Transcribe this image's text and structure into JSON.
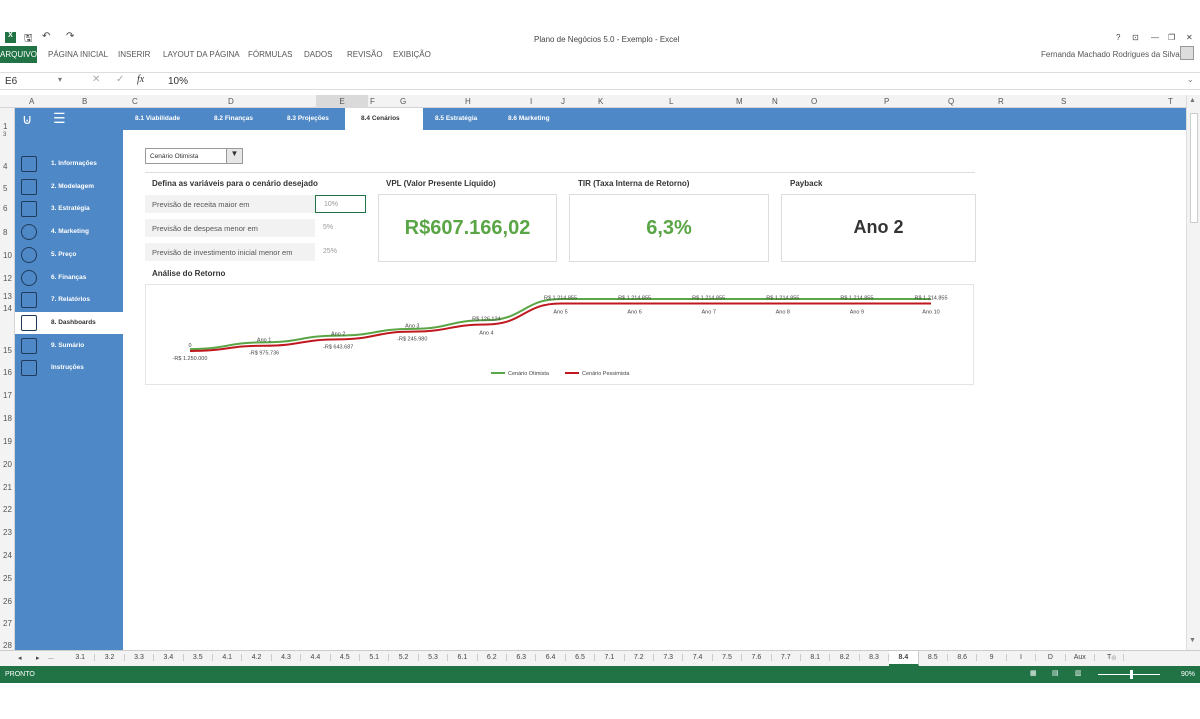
{
  "window": {
    "title": "Plano de Negócios 5.0 - Exemplo - Excel",
    "user": "Fernanda Machado Rodrigues da Silva",
    "controls": [
      "?",
      "⊡",
      "—",
      "❐",
      "✕"
    ]
  },
  "ribbon": {
    "tabs": [
      "ARQUIVO",
      "PÁGINA INICIAL",
      "INSERIR",
      "LAYOUT DA PÁGINA",
      "FÓRMULAS",
      "DADOS",
      "REVISÃO",
      "EXIBIÇÃO"
    ]
  },
  "formula": {
    "cell": "E6",
    "fx": "fx",
    "value": "10%"
  },
  "columns": [
    "A",
    "B",
    "C",
    "D",
    "E",
    "F",
    "G",
    "H",
    "I",
    "J",
    "K",
    "L",
    "M",
    "N",
    "O",
    "P",
    "Q",
    "R",
    "S",
    "T"
  ],
  "rows": [
    "1",
    "3",
    "4",
    "5",
    "6",
    "8",
    "10",
    "12",
    "13",
    "14",
    "15",
    "16",
    "17",
    "18",
    "19",
    "20",
    "21",
    "22",
    "23",
    "24",
    "25",
    "26",
    "27",
    "28"
  ],
  "nav": {
    "tabs": [
      "8.1 Viabilidade",
      "8.2 Finanças",
      "8.3 Projeções",
      "8.4 Cenários",
      "8.5 Estratégia",
      "8.6 Marketing"
    ]
  },
  "sidebar": {
    "items": [
      "1. Informações",
      "2. Modelagem",
      "3. Estratégia",
      "4. Marketing",
      "5. Preço",
      "6. Finanças",
      "7. Relatórios",
      "8. Dashboards",
      "9. Sumário",
      "Instruções"
    ]
  },
  "scenario": {
    "selected": "Cenário Otimista"
  },
  "variables": {
    "header": "Defina as variáveis para o cenário desejado",
    "rows": [
      {
        "label": "Previsão de receita maior em",
        "value": "10%"
      },
      {
        "label": "Previsão de despesa menor em",
        "value": "5%"
      },
      {
        "label": "Previsão de investimento inicial menor em",
        "value": "25%"
      }
    ]
  },
  "vpl": {
    "header": "VPL (Valor Presente Líquido)",
    "value": "R$607.166,02"
  },
  "tir": {
    "header": "TIR (Taxa Interna de Retorno)",
    "value": "6,3%"
  },
  "payback": {
    "header": "Payback",
    "value": "Ano 2"
  },
  "chart_title": "Análise do Retorno",
  "chart_data": {
    "type": "line",
    "categories": [
      "0",
      "Ano 1",
      "Ano 2",
      "Ano 3",
      "Ano 4",
      "Ano 5",
      "Ano 6",
      "Ano 7",
      "Ano 8",
      "Ano 9",
      "Ano 10"
    ],
    "series": [
      {
        "name": "Cenário Otimista",
        "color": "#5aa545",
        "values": [
          -1150000,
          -800000,
          -450000,
          -100000,
          350000,
          1450000,
          1450000,
          1450000,
          1450000,
          1450000,
          1450000
        ]
      },
      {
        "name": "Cenário Pessimista",
        "color": "#c0181f",
        "values": [
          -1250000,
          -975736,
          -643687,
          -245980,
          126124,
          1214855,
          1214855,
          1214855,
          1214855,
          1214855,
          1214855
        ]
      }
    ],
    "data_labels": [
      "-R$ 1.250.000",
      "-R$ 975.736",
      "-R$ 643.687",
      "-R$ 245.980",
      "R$ 126.124",
      "R$ 1.214.855",
      "R$ 1.214.855",
      "R$ 1.214.855",
      "R$ 1.214.855",
      "R$ 1.214.855",
      "R$ 1.214.855"
    ],
    "legend": "bottom"
  },
  "sheets": [
    "3.1",
    "3.2",
    "3.3",
    "3.4",
    "3.5",
    "4.1",
    "4.2",
    "4.3",
    "4.4",
    "4.5",
    "5.1",
    "5.2",
    "5.3",
    "6.1",
    "6.2",
    "6.3",
    "6.4",
    "6.5",
    "7.1",
    "7.2",
    "7.3",
    "7.4",
    "7.5",
    "7.6",
    "7.7",
    "8.1",
    "8.2",
    "8.3",
    "8.4",
    "8.5",
    "8.6",
    "9",
    "I",
    "D",
    "Aux",
    "T"
  ],
  "active_sheet": "8.4",
  "status": {
    "left": "PRONTO",
    "zoom": "90%"
  }
}
